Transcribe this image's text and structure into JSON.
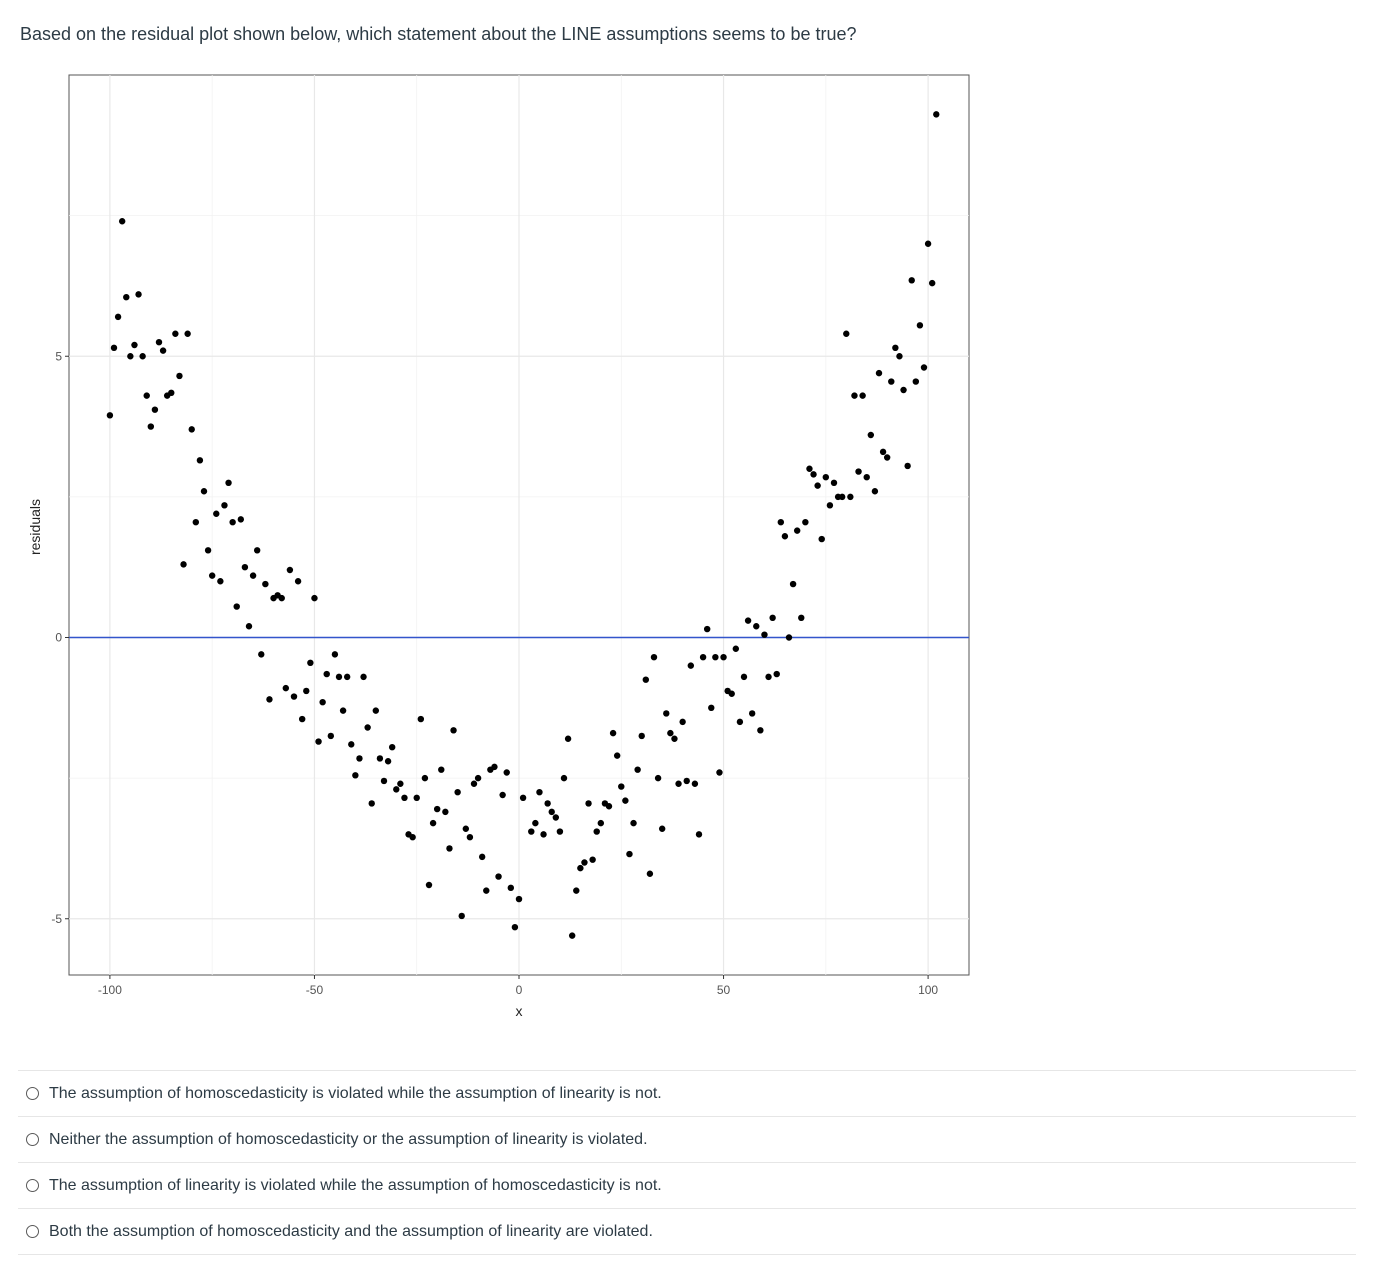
{
  "question": {
    "text": "Based on the residual plot shown below, which statement about the LINE assumptions seems to be true?"
  },
  "chart_data": {
    "type": "scatter",
    "xlabel": "x",
    "ylabel": "residuals",
    "xlim": [
      -110,
      110
    ],
    "ylim": [
      -6.0,
      10.0
    ],
    "xticks": [
      -100,
      -50,
      0,
      50,
      100
    ],
    "xtick_labels": [
      "-100",
      "-50",
      "0",
      "50",
      "100"
    ],
    "yticks": [
      -5,
      0,
      5
    ],
    "ytick_labels": [
      "-5",
      "0",
      "5"
    ],
    "grid": true,
    "reference_line": {
      "y": 0,
      "color": "#3355cc"
    },
    "point_color": "#000000",
    "points": [
      [
        -100,
        3.95
      ],
      [
        -99,
        5.15
      ],
      [
        -98,
        5.7
      ],
      [
        -97,
        7.4
      ],
      [
        -96,
        6.05
      ],
      [
        -95,
        5.0
      ],
      [
        -94,
        5.2
      ],
      [
        -93,
        6.1
      ],
      [
        -92,
        5.0
      ],
      [
        -91,
        4.3
      ],
      [
        -90,
        3.75
      ],
      [
        -89,
        4.05
      ],
      [
        -88,
        5.25
      ],
      [
        -87,
        5.1
      ],
      [
        -86,
        4.3
      ],
      [
        -85,
        4.35
      ],
      [
        -84,
        5.4
      ],
      [
        -83,
        4.65
      ],
      [
        -82,
        1.3
      ],
      [
        -81,
        5.4
      ],
      [
        -80,
        3.7
      ],
      [
        -79,
        2.05
      ],
      [
        -78,
        3.15
      ],
      [
        -77,
        2.6
      ],
      [
        -76,
        1.55
      ],
      [
        -75,
        1.1
      ],
      [
        -74,
        2.2
      ],
      [
        -73,
        1.0
      ],
      [
        -72,
        2.35
      ],
      [
        -71,
        2.75
      ],
      [
        -70,
        2.05
      ],
      [
        -69,
        0.55
      ],
      [
        -68,
        2.1
      ],
      [
        -67,
        1.25
      ],
      [
        -66,
        0.2
      ],
      [
        -65,
        1.1
      ],
      [
        -64,
        1.55
      ],
      [
        -63,
        -0.3
      ],
      [
        -62,
        0.95
      ],
      [
        -61,
        -1.1
      ],
      [
        -60,
        0.7
      ],
      [
        -59,
        0.75
      ],
      [
        -58,
        0.7
      ],
      [
        -57,
        -0.9
      ],
      [
        -56,
        1.2
      ],
      [
        -55,
        -1.05
      ],
      [
        -54,
        1.0
      ],
      [
        -53,
        -1.45
      ],
      [
        -52,
        -0.95
      ],
      [
        -51,
        -0.45
      ],
      [
        -50,
        0.7
      ],
      [
        -49,
        -1.85
      ],
      [
        -48,
        -1.15
      ],
      [
        -47,
        -0.65
      ],
      [
        -46,
        -1.75
      ],
      [
        -45,
        -0.3
      ],
      [
        -44,
        -0.7
      ],
      [
        -43,
        -1.3
      ],
      [
        -42,
        -0.7
      ],
      [
        -41,
        -1.9
      ],
      [
        -40,
        -2.45
      ],
      [
        -39,
        -2.15
      ],
      [
        -38,
        -0.7
      ],
      [
        -37,
        -1.6
      ],
      [
        -36,
        -2.95
      ],
      [
        -35,
        -1.3
      ],
      [
        -34,
        -2.15
      ],
      [
        -33,
        -2.55
      ],
      [
        -32,
        -2.2
      ],
      [
        -31,
        -1.95
      ],
      [
        -30,
        -2.7
      ],
      [
        -29,
        -2.6
      ],
      [
        -28,
        -2.85
      ],
      [
        -27,
        -3.5
      ],
      [
        -26,
        -3.55
      ],
      [
        -25,
        -2.85
      ],
      [
        -24,
        -1.45
      ],
      [
        -23,
        -2.5
      ],
      [
        -22,
        -4.4
      ],
      [
        -21,
        -3.3
      ],
      [
        -20,
        -3.05
      ],
      [
        -19,
        -2.35
      ],
      [
        -18,
        -3.1
      ],
      [
        -17,
        -3.75
      ],
      [
        -16,
        -1.65
      ],
      [
        -15,
        -2.75
      ],
      [
        -14,
        -4.95
      ],
      [
        -13,
        -3.4
      ],
      [
        -12,
        -3.55
      ],
      [
        -11,
        -2.6
      ],
      [
        -10,
        -2.5
      ],
      [
        -9,
        -3.9
      ],
      [
        -8,
        -4.5
      ],
      [
        -7,
        -2.35
      ],
      [
        -6,
        -2.3
      ],
      [
        -5,
        -4.25
      ],
      [
        -4,
        -2.8
      ],
      [
        -3,
        -2.4
      ],
      [
        -2,
        -4.45
      ],
      [
        -1,
        -5.15
      ],
      [
        0,
        -4.65
      ],
      [
        1,
        -2.85
      ],
      [
        3,
        -3.45
      ],
      [
        4,
        -3.3
      ],
      [
        5,
        -2.75
      ],
      [
        6,
        -3.5
      ],
      [
        7,
        -2.95
      ],
      [
        8,
        -3.1
      ],
      [
        9,
        -3.2
      ],
      [
        10,
        -3.45
      ],
      [
        11,
        -2.5
      ],
      [
        12,
        -1.8
      ],
      [
        13,
        -5.3
      ],
      [
        14,
        -4.5
      ],
      [
        15,
        -4.1
      ],
      [
        16,
        -4.0
      ],
      [
        17,
        -2.95
      ],
      [
        18,
        -3.95
      ],
      [
        19,
        -3.45
      ],
      [
        20,
        -3.3
      ],
      [
        21,
        -2.95
      ],
      [
        22,
        -3.0
      ],
      [
        23,
        -1.7
      ],
      [
        24,
        -2.1
      ],
      [
        25,
        -2.65
      ],
      [
        26,
        -2.9
      ],
      [
        27,
        -3.85
      ],
      [
        28,
        -3.3
      ],
      [
        29,
        -2.35
      ],
      [
        30,
        -1.75
      ],
      [
        31,
        -0.75
      ],
      [
        32,
        -4.2
      ],
      [
        33,
        -0.35
      ],
      [
        34,
        -2.5
      ],
      [
        35,
        -3.4
      ],
      [
        36,
        -1.35
      ],
      [
        37,
        -1.7
      ],
      [
        38,
        -1.8
      ],
      [
        39,
        -2.6
      ],
      [
        40,
        -1.5
      ],
      [
        41,
        -2.55
      ],
      [
        42,
        -0.5
      ],
      [
        43,
        -2.6
      ],
      [
        44,
        -3.5
      ],
      [
        45,
        -0.35
      ],
      [
        46,
        0.15
      ],
      [
        47,
        -1.25
      ],
      [
        48,
        -0.35
      ],
      [
        49,
        -2.4
      ],
      [
        50,
        -0.35
      ],
      [
        51,
        -0.95
      ],
      [
        52,
        -1.0
      ],
      [
        53,
        -0.2
      ],
      [
        54,
        -1.5
      ],
      [
        55,
        -0.7
      ],
      [
        56,
        0.3
      ],
      [
        57,
        -1.35
      ],
      [
        58,
        0.2
      ],
      [
        59,
        -1.65
      ],
      [
        60,
        0.05
      ],
      [
        61,
        -0.7
      ],
      [
        62,
        0.35
      ],
      [
        63,
        -0.65
      ],
      [
        64,
        2.05
      ],
      [
        65,
        1.8
      ],
      [
        66,
        0.0
      ],
      [
        67,
        0.95
      ],
      [
        68,
        1.9
      ],
      [
        69,
        0.35
      ],
      [
        70,
        2.05
      ],
      [
        71,
        3.0
      ],
      [
        72,
        2.9
      ],
      [
        73,
        2.7
      ],
      [
        74,
        1.75
      ],
      [
        75,
        2.85
      ],
      [
        76,
        2.35
      ],
      [
        77,
        2.75
      ],
      [
        78,
        2.5
      ],
      [
        79,
        2.5
      ],
      [
        80,
        5.4
      ],
      [
        81,
        2.5
      ],
      [
        82,
        4.3
      ],
      [
        83,
        2.95
      ],
      [
        84,
        4.3
      ],
      [
        85,
        2.85
      ],
      [
        86,
        3.6
      ],
      [
        87,
        2.6
      ],
      [
        88,
        4.7
      ],
      [
        89,
        3.3
      ],
      [
        90,
        3.2
      ],
      [
        91,
        4.55
      ],
      [
        92,
        5.15
      ],
      [
        93,
        5.0
      ],
      [
        94,
        4.4
      ],
      [
        95,
        3.05
      ],
      [
        96,
        6.35
      ],
      [
        97,
        4.55
      ],
      [
        98,
        5.55
      ],
      [
        99,
        4.8
      ],
      [
        100,
        7.0
      ],
      [
        101,
        6.3
      ],
      [
        102,
        9.3
      ]
    ]
  },
  "answers": [
    {
      "label": "The assumption of homoscedasticity is violated while the assumption of linearity is not."
    },
    {
      "label": "Neither the assumption of homoscedasticity or the assumption of linearity is violated."
    },
    {
      "label": "The assumption of linearity is violated while the assumption of homoscedasticity is not."
    },
    {
      "label": "Both the assumption of homoscedasticity and the assumption of linearity are violated."
    }
  ]
}
